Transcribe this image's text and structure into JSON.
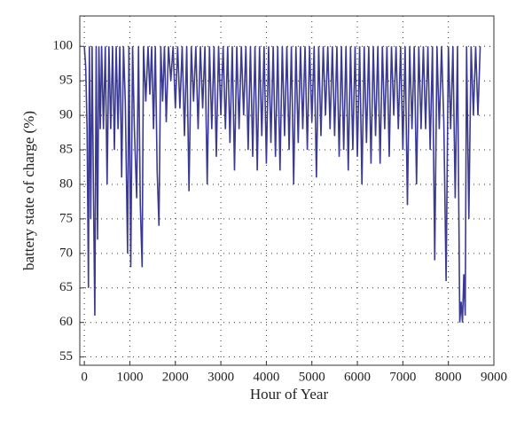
{
  "chart_data": {
    "type": "line",
    "xlabel": "Hour of Year",
    "ylabel": "battery state of charge (%)",
    "color": "#3b3a92",
    "grid": true,
    "xlim": [
      -100,
      9000
    ],
    "ylim": [
      53.8,
      104.4
    ],
    "xticks": [
      0,
      1000,
      2000,
      3000,
      4000,
      5000,
      6000,
      7000,
      8000,
      9000
    ],
    "yticks": [
      55,
      60,
      65,
      70,
      75,
      80,
      85,
      90,
      95,
      100
    ],
    "x": [
      0,
      30,
      60,
      90,
      110,
      140,
      170,
      200,
      230,
      260,
      290,
      320,
      350,
      380,
      420,
      460,
      500,
      540,
      580,
      620,
      660,
      700,
      740,
      780,
      820,
      860,
      900,
      950,
      980,
      1020,
      1060,
      1100,
      1150,
      1190,
      1230,
      1270,
      1300,
      1350,
      1400,
      1440,
      1480,
      1520,
      1560,
      1600,
      1640,
      1680,
      1720,
      1760,
      1800,
      1850,
      1900,
      1950,
      2000,
      2050,
      2100,
      2150,
      2200,
      2250,
      2300,
      2350,
      2400,
      2450,
      2500,
      2550,
      2600,
      2650,
      2700,
      2750,
      2800,
      2850,
      2900,
      2950,
      3000,
      3050,
      3100,
      3150,
      3200,
      3250,
      3300,
      3350,
      3400,
      3450,
      3500,
      3550,
      3600,
      3650,
      3700,
      3750,
      3800,
      3850,
      3900,
      3950,
      4000,
      4050,
      4100,
      4150,
      4200,
      4250,
      4300,
      4350,
      4400,
      4450,
      4500,
      4550,
      4600,
      4650,
      4700,
      4750,
      4800,
      4850,
      4900,
      4950,
      5000,
      5050,
      5100,
      5150,
      5200,
      5250,
      5300,
      5350,
      5400,
      5450,
      5500,
      5550,
      5600,
      5650,
      5700,
      5750,
      5800,
      5850,
      5900,
      5950,
      6000,
      6050,
      6100,
      6150,
      6200,
      6250,
      6300,
      6350,
      6400,
      6450,
      6500,
      6550,
      6600,
      6650,
      6700,
      6750,
      6800,
      6850,
      6900,
      6950,
      7000,
      7050,
      7100,
      7150,
      7200,
      7250,
      7300,
      7350,
      7400,
      7450,
      7500,
      7550,
      7600,
      7650,
      7700,
      7750,
      7800,
      7850,
      7900,
      7950,
      8000,
      8050,
      8100,
      8150,
      8200,
      8250,
      8280,
      8310,
      8340,
      8370,
      8400,
      8450,
      8500,
      8550,
      8600,
      8650,
      8700
    ],
    "values": [
      100,
      97,
      88,
      65,
      100,
      75,
      100,
      79,
      61,
      100,
      72,
      100,
      88,
      100,
      88,
      100,
      80,
      100,
      88,
      100,
      85,
      100,
      88,
      100,
      81,
      100,
      92,
      70,
      100,
      68,
      100,
      88,
      78,
      100,
      77,
      68,
      100,
      92,
      100,
      93,
      100,
      88,
      100,
      82,
      74,
      100,
      92,
      100,
      89,
      100,
      95,
      100,
      91,
      100,
      91,
      100,
      87,
      100,
      79,
      100,
      92,
      100,
      88,
      100,
      91,
      100,
      80,
      100,
      88,
      100,
      84,
      100,
      90,
      100,
      88,
      100,
      86,
      100,
      82,
      100,
      88,
      100,
      90,
      100,
      85,
      100,
      84,
      100,
      82,
      100,
      87,
      100,
      83,
      100,
      86,
      100,
      84,
      100,
      82,
      100,
      87,
      100,
      85,
      100,
      80,
      100,
      86,
      100,
      88,
      100,
      85,
      100,
      89,
      100,
      81,
      100,
      87,
      100,
      90,
      100,
      88,
      100,
      87,
      100,
      84,
      100,
      85,
      100,
      82,
      100,
      85,
      100,
      84,
      100,
      80,
      100,
      86,
      100,
      83,
      100,
      87,
      100,
      83,
      100,
      88,
      100,
      84,
      100,
      90,
      100,
      88,
      100,
      85,
      100,
      77,
      100,
      88,
      100,
      80,
      100,
      88,
      100,
      88,
      100,
      85,
      100,
      69,
      100,
      88,
      100,
      89,
      66,
      100,
      88,
      100,
      78,
      100,
      60,
      63,
      60,
      67,
      61,
      100,
      75,
      100,
      90,
      100,
      90,
      100
    ]
  }
}
